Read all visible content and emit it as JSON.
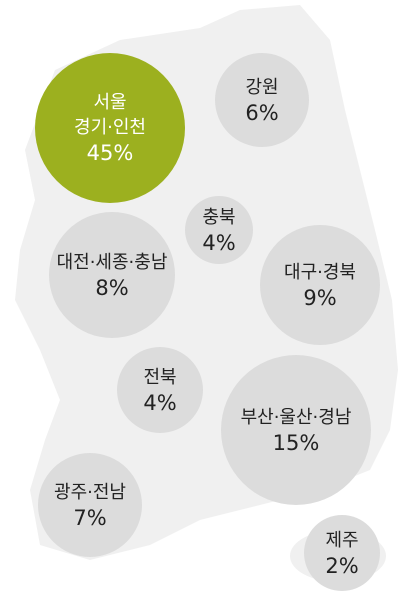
{
  "chart_data": {
    "type": "bubble",
    "categories": [
      "서울\n경기·인천",
      "강원",
      "충북",
      "대전·세종·충남",
      "대구·경북",
      "전북",
      "부산·울산·경남",
      "광주·전남",
      "제주"
    ],
    "values": [
      45,
      6,
      4,
      8,
      9,
      4,
      15,
      7,
      2
    ],
    "value_labels": [
      "45%",
      "6%",
      "4%",
      "8%",
      "9%",
      "4%",
      "15%",
      "7%",
      "2%"
    ],
    "color": "#dcdcdc",
    "highlight_color": "#9cb01f"
  }
}
